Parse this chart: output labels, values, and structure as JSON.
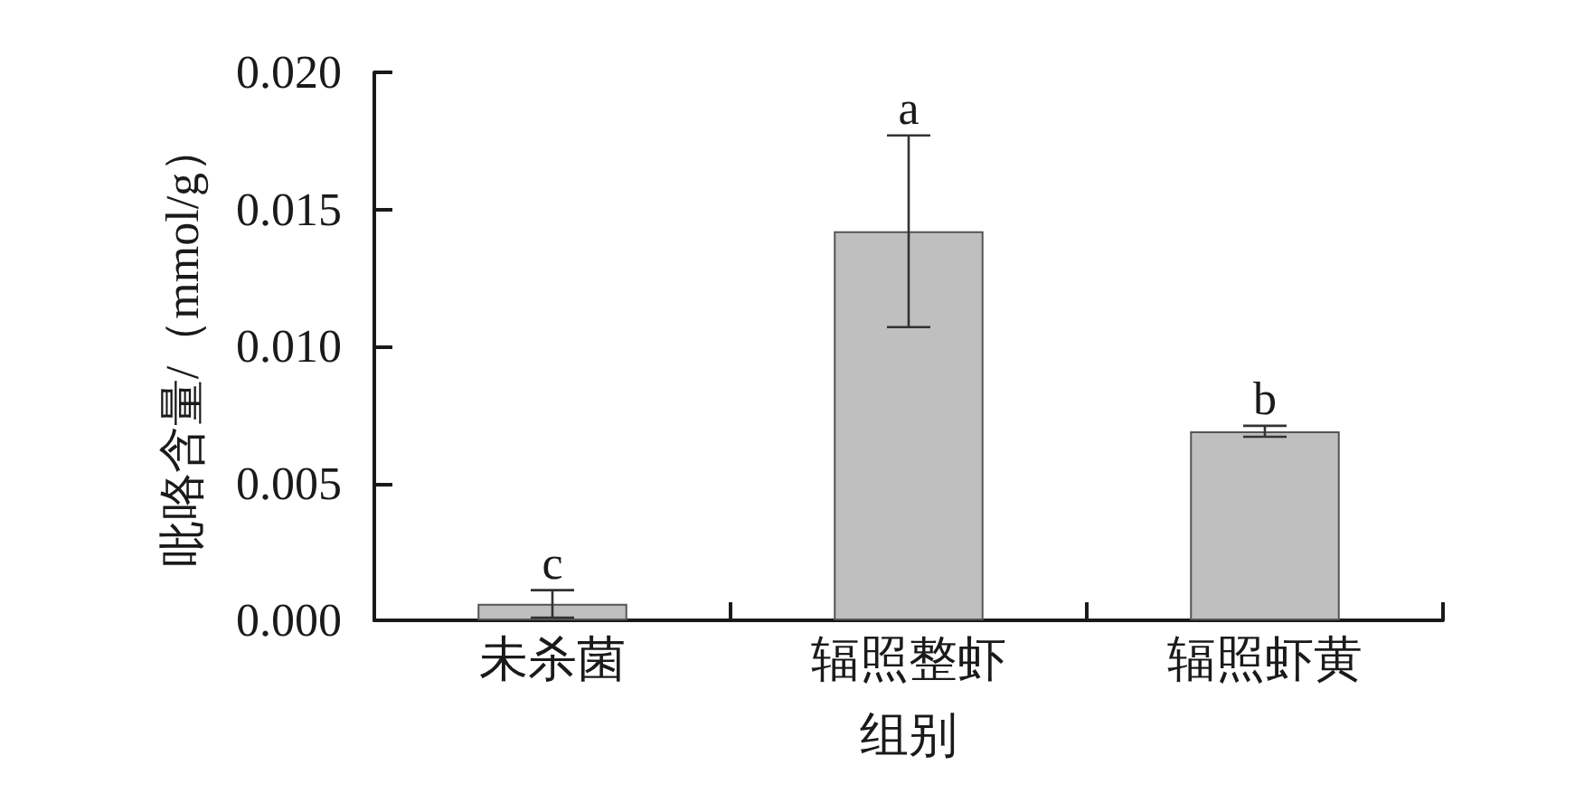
{
  "chart_data": {
    "type": "bar",
    "xlabel": "组别",
    "ylabel": "吡咯含量/（mmol/g）",
    "categories": [
      "未杀菌",
      "辐照整虾",
      "辐照虾黄"
    ],
    "values": [
      0.0006,
      0.0142,
      0.0069
    ],
    "errors": [
      0.0005,
      0.0035,
      0.0002
    ],
    "color": "#bfbfbf",
    "ylim": [
      0,
      0.02
    ],
    "yticks": [
      {
        "value": 0,
        "label": "0.000"
      },
      {
        "value": 0.005,
        "label": "0.005"
      },
      {
        "value": 0.01,
        "label": "0.010"
      },
      {
        "value": 0.015,
        "label": "0.015"
      },
      {
        "value": 0.02,
        "label": "0.020"
      }
    ],
    "annotations": [
      {
        "text": "c",
        "x": "未杀菌",
        "y": 0.0011
      },
      {
        "text": "a",
        "x": "辐照整虾",
        "y": 0.0177
      },
      {
        "text": "b",
        "x": "辐照虾黄",
        "y": 0.0071
      }
    ]
  }
}
